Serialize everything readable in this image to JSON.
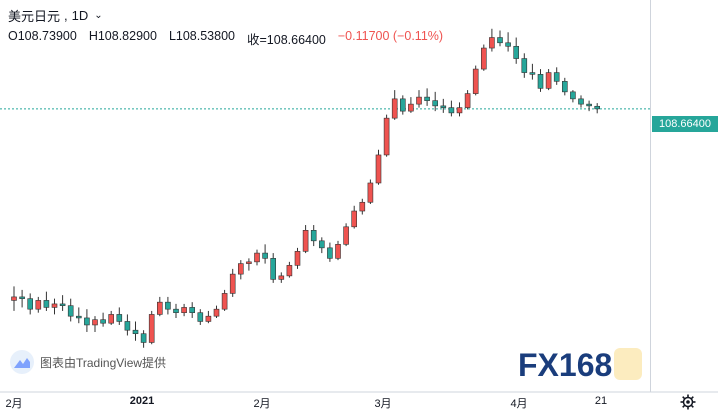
{
  "header": {
    "symbol": "美元日元",
    "timeframe": "1D",
    "open_label": "O108.73900",
    "high_label": "H108.82900",
    "low_label": "L108.53800",
    "close_label": "收=108.66400",
    "change_label": "−0.11700 (−0.11%)"
  },
  "price_label": "108.66400",
  "watermark": {
    "tradingview_text": "图表由TradingView提供",
    "fx_logo_text": "FX168"
  },
  "x_axis": {
    "labels": [
      "2月",
      "2021",
      "2月",
      "3月",
      "4月",
      "21"
    ]
  },
  "colors": {
    "up": "#ef5350",
    "down": "#26a69a",
    "price_line": "#26a69a",
    "axis": "#cfd4dc"
  },
  "icons": {
    "chevron": "chevron-down-icon",
    "settings": "gear-icon",
    "tradingview": "tradingview-logo-icon"
  },
  "chart_data": {
    "type": "candlestick",
    "last_price": 108.664,
    "x_ticks": [
      "2月",
      "2021",
      "2月",
      "3月",
      "4月",
      "21"
    ],
    "ohlc": [
      [
        103.2,
        103.6,
        102.9,
        103.3
      ],
      [
        103.3,
        103.5,
        103.0,
        103.25
      ],
      [
        103.25,
        103.4,
        102.8,
        102.95
      ],
      [
        102.95,
        103.3,
        102.85,
        103.2
      ],
      [
        103.2,
        103.45,
        102.9,
        103.0
      ],
      [
        103.0,
        103.25,
        102.8,
        103.1
      ],
      [
        103.1,
        103.35,
        102.9,
        103.05
      ],
      [
        103.05,
        103.25,
        102.6,
        102.75
      ],
      [
        102.75,
        103.0,
        102.55,
        102.7
      ],
      [
        102.7,
        102.95,
        102.3,
        102.5
      ],
      [
        102.5,
        102.75,
        102.3,
        102.65
      ],
      [
        102.65,
        102.85,
        102.45,
        102.55
      ],
      [
        102.55,
        102.9,
        102.5,
        102.8
      ],
      [
        102.8,
        103.0,
        102.5,
        102.6
      ],
      [
        102.6,
        102.8,
        102.2,
        102.35
      ],
      [
        102.35,
        102.6,
        102.05,
        102.25
      ],
      [
        102.25,
        102.35,
        101.85,
        102.0
      ],
      [
        102.0,
        102.9,
        101.95,
        102.8
      ],
      [
        102.8,
        103.3,
        102.75,
        103.15
      ],
      [
        103.15,
        103.3,
        102.8,
        102.95
      ],
      [
        102.95,
        103.1,
        102.7,
        102.85
      ],
      [
        102.85,
        103.1,
        102.75,
        103.0
      ],
      [
        103.0,
        103.15,
        102.7,
        102.85
      ],
      [
        102.85,
        102.95,
        102.5,
        102.6
      ],
      [
        102.6,
        102.9,
        102.55,
        102.75
      ],
      [
        102.75,
        103.05,
        102.7,
        102.95
      ],
      [
        102.95,
        103.5,
        102.9,
        103.4
      ],
      [
        103.4,
        104.1,
        103.3,
        103.95
      ],
      [
        103.95,
        104.35,
        103.8,
        104.25
      ],
      [
        104.25,
        104.4,
        104.05,
        104.3
      ],
      [
        104.3,
        104.65,
        104.2,
        104.55
      ],
      [
        104.55,
        104.8,
        104.25,
        104.4
      ],
      [
        104.4,
        104.55,
        103.7,
        103.8
      ],
      [
        103.8,
        104.0,
        103.7,
        103.9
      ],
      [
        103.9,
        104.3,
        103.85,
        104.2
      ],
      [
        104.2,
        104.7,
        104.1,
        104.6
      ],
      [
        104.6,
        105.35,
        104.55,
        105.2
      ],
      [
        105.2,
        105.35,
        104.75,
        104.9
      ],
      [
        104.9,
        105.0,
        104.55,
        104.7
      ],
      [
        104.7,
        104.85,
        104.3,
        104.4
      ],
      [
        104.4,
        104.9,
        104.35,
        104.8
      ],
      [
        104.8,
        105.4,
        104.75,
        105.3
      ],
      [
        105.3,
        105.9,
        105.25,
        105.75
      ],
      [
        105.75,
        106.1,
        105.65,
        106.0
      ],
      [
        106.0,
        106.65,
        105.95,
        106.55
      ],
      [
        106.55,
        107.5,
        106.5,
        107.35
      ],
      [
        107.35,
        108.5,
        107.3,
        108.4
      ],
      [
        108.4,
        109.2,
        108.35,
        108.95
      ],
      [
        108.95,
        109.05,
        108.5,
        108.6
      ],
      [
        108.6,
        109.0,
        108.55,
        108.8
      ],
      [
        108.8,
        109.2,
        108.7,
        109.0
      ],
      [
        109.0,
        109.25,
        108.75,
        108.9
      ],
      [
        108.9,
        109.15,
        108.6,
        108.75
      ],
      [
        108.75,
        108.95,
        108.55,
        108.7
      ],
      [
        108.7,
        108.9,
        108.45,
        108.55
      ],
      [
        108.55,
        108.85,
        108.45,
        108.7
      ],
      [
        108.7,
        109.2,
        108.65,
        109.1
      ],
      [
        109.1,
        109.9,
        109.05,
        109.8
      ],
      [
        109.8,
        110.5,
        109.75,
        110.4
      ],
      [
        110.4,
        110.95,
        110.3,
        110.7
      ],
      [
        110.7,
        110.9,
        110.45,
        110.55
      ],
      [
        110.55,
        110.85,
        110.3,
        110.45
      ],
      [
        110.45,
        110.7,
        109.95,
        110.1
      ],
      [
        110.1,
        110.25,
        109.55,
        109.7
      ],
      [
        109.7,
        109.95,
        109.5,
        109.65
      ],
      [
        109.65,
        109.8,
        109.15,
        109.25
      ],
      [
        109.25,
        109.8,
        109.2,
        109.7
      ],
      [
        109.7,
        109.85,
        109.35,
        109.45
      ],
      [
        109.45,
        109.55,
        109.05,
        109.15
      ],
      [
        109.15,
        109.2,
        108.85,
        108.95
      ],
      [
        108.95,
        109.05,
        108.7,
        108.8
      ],
      [
        108.8,
        108.9,
        108.6,
        108.75
      ],
      [
        108.739,
        108.829,
        108.538,
        108.664
      ]
    ]
  }
}
